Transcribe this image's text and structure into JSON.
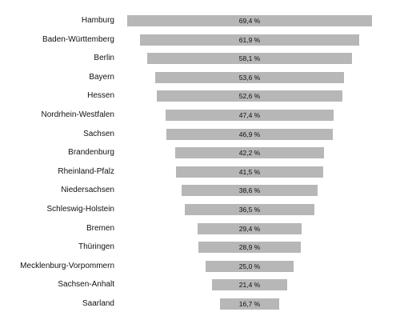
{
  "chart_data": {
    "type": "bar",
    "orientation": "horizontal",
    "centered": true,
    "grid": false,
    "legend": false,
    "bar_color": "#b7b7b7",
    "categories": [
      "Hamburg",
      "Baden-Württemberg",
      "Berlin",
      "Bayern",
      "Hessen",
      "Nordrhein-Westfalen",
      "Sachsen",
      "Brandenburg",
      "Rheinland-Pfalz",
      "Niedersachsen",
      "Schleswig-Holstein",
      "Bremen",
      "Thüringen",
      "Mecklenburg-Vorpommern",
      "Sachsen-Anhalt",
      "Saarland"
    ],
    "values": [
      69.4,
      61.9,
      58.1,
      53.6,
      52.6,
      47.4,
      46.9,
      42.2,
      41.5,
      38.6,
      36.5,
      29.4,
      28.9,
      25.0,
      21.4,
      16.7
    ],
    "value_labels": [
      "69,4 %",
      "61,9 %",
      "58,1 %",
      "53,6 %",
      "52,6 %",
      "47,4 %",
      "46,9 %",
      "42,2 %",
      "41,5 %",
      "38,6 %",
      "36,5 %",
      "29,4 %",
      "28,9 %",
      "25,0 %",
      "21,4 %",
      "16,7 %"
    ]
  }
}
